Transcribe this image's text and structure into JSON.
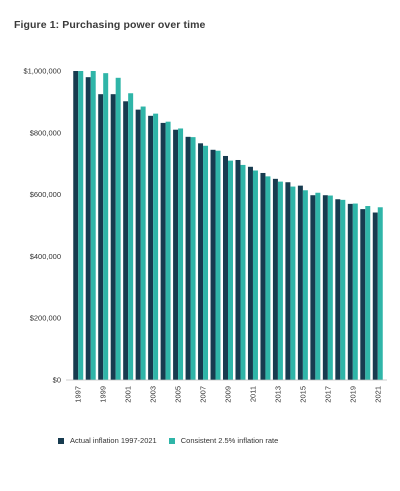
{
  "chart_data": {
    "type": "bar",
    "title": "Figure 1: Purchasing power over time",
    "xlabel": "",
    "ylabel": "",
    "categories": [
      "1997",
      "1998",
      "1999",
      "2000",
      "2001",
      "2002",
      "2003",
      "2004",
      "2005",
      "2006",
      "2007",
      "2008",
      "2009",
      "2010",
      "2011",
      "2012",
      "2013",
      "2014",
      "2015",
      "2016",
      "2017",
      "2018",
      "2019",
      "2020",
      "2021"
    ],
    "x_tick_labels": [
      "1997",
      "1999",
      "2001",
      "2003",
      "2005",
      "2007",
      "2009",
      "2011",
      "2013",
      "2015",
      "2017",
      "2019",
      "2021"
    ],
    "y_tick_labels": [
      "$0",
      "$200,000",
      "$400,000",
      "$600,000",
      "$800,000",
      "$1,000,000"
    ],
    "y_ticks": [
      0,
      200000,
      400000,
      600000,
      800000,
      1000000
    ],
    "ylim": [
      0,
      1000000
    ],
    "grid": false,
    "legend_position": "bottom-left",
    "series": [
      {
        "name": "Actual inflation 1997-2021",
        "color": "#173b4f",
        "values": [
          1000000,
          980000,
          925000,
          925000,
          902000,
          875000,
          855000,
          832000,
          810000,
          787000,
          766000,
          745000,
          725000,
          712000,
          690000,
          670000,
          651000,
          640000,
          629000,
          598000,
          598000,
          585000,
          570000,
          553000,
          542000
        ]
      },
      {
        "name": "Consistent 2.5% inflation rate",
        "color": "#2fb5a8",
        "values": [
          1000000,
          1000000,
          993000,
          978000,
          928000,
          885000,
          862000,
          836000,
          814000,
          786000,
          758000,
          742000,
          710000,
          696000,
          678000,
          659000,
          642000,
          626000,
          614000,
          606000,
          597000,
          583000,
          571000,
          563000,
          559000
        ]
      }
    ]
  }
}
